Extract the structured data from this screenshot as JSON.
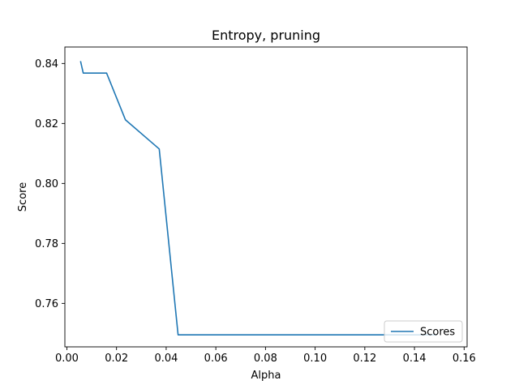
{
  "chart_data": {
    "type": "line",
    "title": "Entropy, pruning",
    "xlabel": "Alpha",
    "ylabel": "Score",
    "xlim": [
      -0.0008,
      0.1612
    ],
    "ylim": [
      0.7455,
      0.8455
    ],
    "xticks": [
      0.0,
      0.02,
      0.04,
      0.06,
      0.08,
      0.1,
      0.12,
      0.14,
      0.16
    ],
    "xtick_labels": [
      "0.00",
      "0.02",
      "0.04",
      "0.06",
      "0.08",
      "0.10",
      "0.12",
      "0.14",
      "0.16"
    ],
    "yticks": [
      0.76,
      0.78,
      0.8,
      0.82,
      0.84
    ],
    "ytick_labels": [
      "0.76",
      "0.78",
      "0.80",
      "0.82",
      "0.84"
    ],
    "grid": false,
    "legend_position": "lower right",
    "series": [
      {
        "name": "Scores",
        "color": "#1f77b4",
        "x": [
          0.0055,
          0.0066,
          0.016,
          0.0236,
          0.0372,
          0.0448,
          0.149
        ],
        "y": [
          0.8408,
          0.8368,
          0.8368,
          0.8212,
          0.8115,
          0.7495,
          0.7495
        ]
      }
    ]
  }
}
